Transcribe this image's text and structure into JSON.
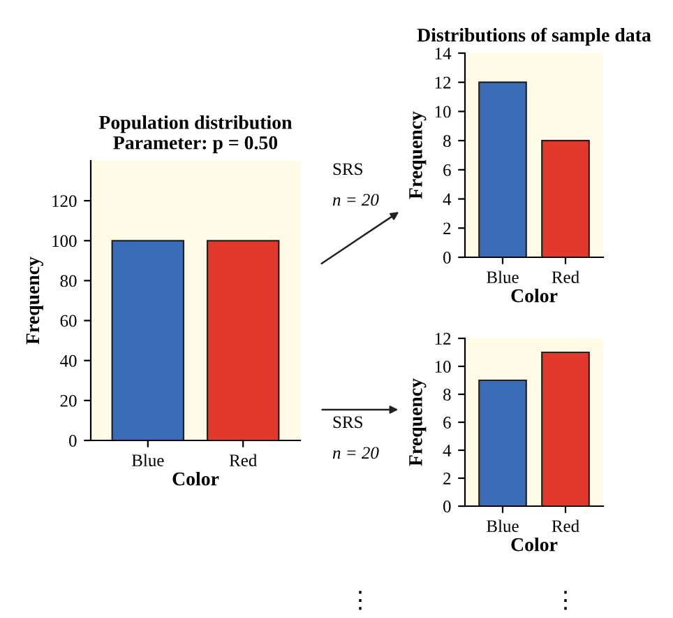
{
  "chart_data": [
    {
      "type": "bar",
      "title": "Population distribution\nParameter: p = 0.50",
      "xlabel": "Color",
      "ylabel": "Frequency",
      "categories": [
        "Blue",
        "Red"
      ],
      "colors": [
        "#3b6cb7",
        "#e2392d"
      ],
      "values": [
        100,
        100
      ],
      "ylim": [
        0,
        140
      ],
      "yticks": [
        0,
        20,
        40,
        60,
        80,
        100,
        120
      ],
      "grid": false,
      "legend": false
    },
    {
      "type": "bar",
      "title": "Distributions of sample data",
      "xlabel": "Color",
      "ylabel": "Frequency",
      "categories": [
        "Blue",
        "Red"
      ],
      "colors": [
        "#3b6cb7",
        "#e2392d"
      ],
      "values": [
        12,
        8
      ],
      "ylim": [
        0,
        14
      ],
      "yticks": [
        0,
        2,
        4,
        6,
        8,
        10,
        12,
        14
      ],
      "grid": false,
      "legend": false,
      "annotations": [
        "SRS",
        "n = 20"
      ]
    },
    {
      "type": "bar",
      "xlabel": "Color",
      "ylabel": "Frequency",
      "categories": [
        "Blue",
        "Red"
      ],
      "colors": [
        "#3b6cb7",
        "#e2392d"
      ],
      "values": [
        9,
        11
      ],
      "ylim": [
        0,
        12
      ],
      "yticks": [
        0,
        2,
        4,
        6,
        8,
        10,
        12
      ],
      "grid": false,
      "legend": false,
      "annotations": [
        "SRS",
        "n = 20",
        "⋮",
        "⋮"
      ]
    }
  ]
}
